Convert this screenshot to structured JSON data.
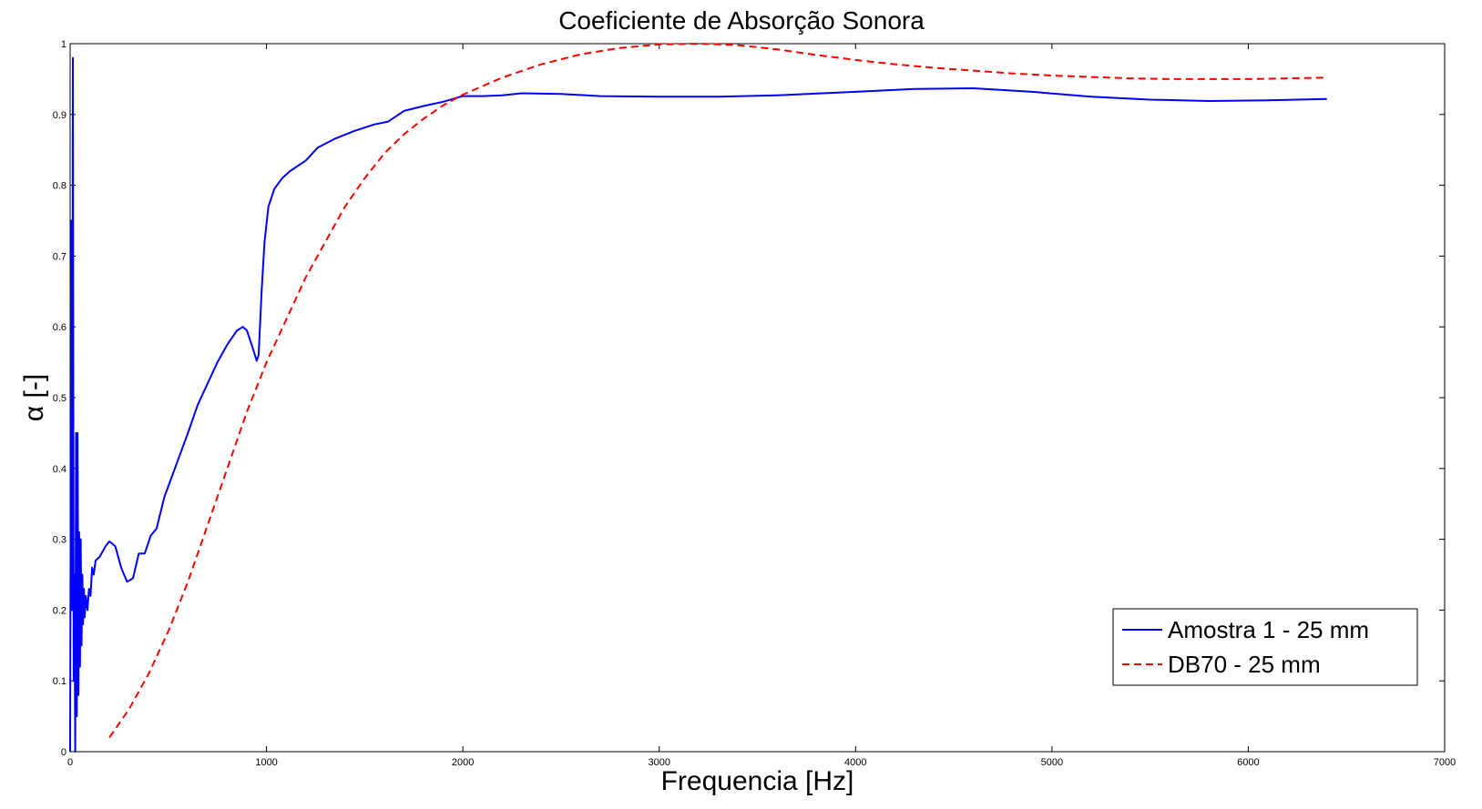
{
  "chart_data": {
    "type": "line",
    "title": "Coeficiente de Absorção Sonora",
    "xlabel": "Frequencia [Hz]",
    "ylabel": "α [-]",
    "xlim": [
      0,
      7000
    ],
    "ylim": [
      0,
      1
    ],
    "x_ticks": [
      "0",
      "1000",
      "2000",
      "3000",
      "4000",
      "5000",
      "6000",
      "7000"
    ],
    "y_ticks": [
      "0",
      "0.1",
      "0.2",
      "0.3",
      "0.4",
      "0.5",
      "0.6",
      "0.7",
      "0.8",
      "0.9",
      "1"
    ],
    "grid": false,
    "legend_position": "bottom-right",
    "series": [
      {
        "name": "Amostra 1 - 25 mm",
        "color": "#0000ff",
        "style": "solid",
        "points": [
          [
            0,
            0.0
          ],
          [
            6,
            0.75
          ],
          [
            10,
            0.2
          ],
          [
            14,
            0.98
          ],
          [
            18,
            0.1
          ],
          [
            22,
            0.25
          ],
          [
            26,
            0.0
          ],
          [
            30,
            0.45
          ],
          [
            34,
            0.05
          ],
          [
            38,
            0.45
          ],
          [
            42,
            0.08
          ],
          [
            46,
            0.31
          ],
          [
            50,
            0.12
          ],
          [
            54,
            0.3
          ],
          [
            58,
            0.15
          ],
          [
            62,
            0.25
          ],
          [
            66,
            0.18
          ],
          [
            70,
            0.23
          ],
          [
            74,
            0.19
          ],
          [
            80,
            0.22
          ],
          [
            88,
            0.2
          ],
          [
            96,
            0.23
          ],
          [
            104,
            0.22
          ],
          [
            112,
            0.26
          ],
          [
            120,
            0.25
          ],
          [
            130,
            0.27
          ],
          [
            150,
            0.275
          ],
          [
            180,
            0.29
          ],
          [
            200,
            0.297
          ],
          [
            230,
            0.29
          ],
          [
            260,
            0.26
          ],
          [
            290,
            0.24
          ],
          [
            320,
            0.245
          ],
          [
            350,
            0.28
          ],
          [
            380,
            0.28
          ],
          [
            410,
            0.305
          ],
          [
            440,
            0.315
          ],
          [
            480,
            0.36
          ],
          [
            520,
            0.39
          ],
          [
            560,
            0.42
          ],
          [
            600,
            0.45
          ],
          [
            650,
            0.49
          ],
          [
            700,
            0.52
          ],
          [
            750,
            0.55
          ],
          [
            800,
            0.575
          ],
          [
            850,
            0.595
          ],
          [
            880,
            0.6
          ],
          [
            900,
            0.595
          ],
          [
            930,
            0.57
          ],
          [
            950,
            0.552
          ],
          [
            960,
            0.56
          ],
          [
            975,
            0.65
          ],
          [
            990,
            0.72
          ],
          [
            1010,
            0.77
          ],
          [
            1040,
            0.795
          ],
          [
            1080,
            0.81
          ],
          [
            1120,
            0.82
          ],
          [
            1200,
            0.835
          ],
          [
            1260,
            0.853
          ],
          [
            1350,
            0.866
          ],
          [
            1450,
            0.877
          ],
          [
            1550,
            0.886
          ],
          [
            1620,
            0.89
          ],
          [
            1700,
            0.905
          ],
          [
            1800,
            0.912
          ],
          [
            1900,
            0.918
          ],
          [
            2000,
            0.926
          ],
          [
            2100,
            0.926
          ],
          [
            2200,
            0.927
          ],
          [
            2300,
            0.93
          ],
          [
            2500,
            0.929
          ],
          [
            2700,
            0.926
          ],
          [
            3000,
            0.925
          ],
          [
            3300,
            0.925
          ],
          [
            3600,
            0.927
          ],
          [
            4000,
            0.932
          ],
          [
            4300,
            0.936
          ],
          [
            4600,
            0.937
          ],
          [
            4900,
            0.932
          ],
          [
            5200,
            0.925
          ],
          [
            5500,
            0.921
          ],
          [
            5800,
            0.919
          ],
          [
            6100,
            0.92
          ],
          [
            6400,
            0.922
          ]
        ]
      },
      {
        "name": "DB70 - 25 mm",
        "color": "#ff0000",
        "style": "dashed",
        "points": [
          [
            200,
            0.02
          ],
          [
            300,
            0.06
          ],
          [
            400,
            0.11
          ],
          [
            500,
            0.17
          ],
          [
            600,
            0.24
          ],
          [
            700,
            0.32
          ],
          [
            800,
            0.4
          ],
          [
            900,
            0.48
          ],
          [
            1000,
            0.55
          ],
          [
            1100,
            0.61
          ],
          [
            1200,
            0.67
          ],
          [
            1300,
            0.72
          ],
          [
            1400,
            0.77
          ],
          [
            1500,
            0.81
          ],
          [
            1600,
            0.845
          ],
          [
            1700,
            0.872
          ],
          [
            1800,
            0.894
          ],
          [
            1900,
            0.913
          ],
          [
            2000,
            0.928
          ],
          [
            2200,
            0.952
          ],
          [
            2400,
            0.971
          ],
          [
            2600,
            0.985
          ],
          [
            2800,
            0.994
          ],
          [
            3000,
            0.999
          ],
          [
            3200,
            1.0
          ],
          [
            3400,
            0.998
          ],
          [
            3600,
            0.992
          ],
          [
            3800,
            0.984
          ],
          [
            4000,
            0.977
          ],
          [
            4200,
            0.971
          ],
          [
            4400,
            0.966
          ],
          [
            4600,
            0.962
          ],
          [
            4800,
            0.958
          ],
          [
            5000,
            0.955
          ],
          [
            5200,
            0.953
          ],
          [
            5400,
            0.951
          ],
          [
            5600,
            0.95
          ],
          [
            5800,
            0.95
          ],
          [
            6000,
            0.95
          ],
          [
            6200,
            0.951
          ],
          [
            6400,
            0.952
          ]
        ]
      }
    ]
  }
}
